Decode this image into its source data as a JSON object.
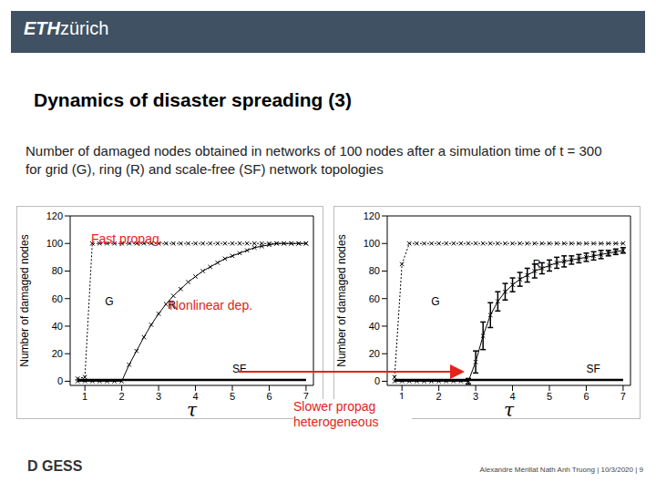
{
  "logo": [
    "ETH",
    "zürich"
  ],
  "title": "Dynamics of disaster spreading (3)",
  "caption": "Number of damaged nodes obtained in networks of 100 nodes after a simulation time of  t = 300 for grid (G), ring (R) and scale-free (SF) network topologies",
  "annotations": [
    "Fast propag.",
    "Nonlinear dep.",
    "Slower propag heterogeneous"
  ],
  "footer_logo": "D GESS",
  "footer": "Alexandre Mérillat Nath Anh Truong  |  10/3/2020  |  9",
  "chart_data": [
    {
      "type": "line",
      "x_label": "τ",
      "y_label": "Number of damaged nodes",
      "xlim": [
        0.6,
        7.2
      ],
      "xticks": [
        1,
        2,
        3,
        4,
        5,
        6,
        7
      ],
      "ylim": [
        -3,
        120
      ],
      "yticks": [
        0,
        20,
        40,
        60,
        80,
        100,
        120
      ],
      "x": [
        0.8,
        1.0,
        1.2,
        1.4,
        1.6,
        1.8,
        2.0,
        2.2,
        2.4,
        2.6,
        2.8,
        3.0,
        3.2,
        3.4,
        3.6,
        3.8,
        4.0,
        4.2,
        4.4,
        4.6,
        4.8,
        5.0,
        5.2,
        5.4,
        5.6,
        5.8,
        6.0,
        6.2,
        6.4,
        6.6,
        6.8,
        7.0
      ],
      "series": [
        {
          "name": "G",
          "color": "#000000",
          "line_style": "dotted",
          "marker": "x",
          "values": [
            2,
            3,
            100,
            100,
            100,
            100,
            100,
            100,
            100,
            100,
            100,
            100,
            100,
            100,
            100,
            100,
            100,
            100,
            100,
            100,
            100,
            100,
            100,
            100,
            100,
            100,
            100,
            100,
            100,
            100,
            100,
            100
          ]
        },
        {
          "name": "R",
          "color": "#000000",
          "line_style": "solid",
          "marker": "x",
          "values": [
            0,
            0,
            0,
            0,
            0,
            0,
            0,
            12,
            22,
            32,
            41,
            49,
            56,
            62,
            67,
            72,
            76,
            80,
            83,
            86,
            89,
            91,
            93,
            95,
            97,
            98,
            99,
            100,
            100,
            100,
            100,
            100
          ]
        },
        {
          "name": "SF",
          "color": "#000000",
          "line_style": "solid",
          "marker": "none",
          "values": [
            1,
            1,
            1,
            1,
            1,
            1,
            1,
            1,
            1,
            1,
            1,
            1,
            1,
            1,
            1,
            1,
            1,
            1,
            1,
            1,
            1,
            1,
            1,
            1,
            1,
            1,
            1,
            1,
            1,
            1,
            1,
            1
          ]
        }
      ]
    },
    {
      "type": "line",
      "x_label": "τ",
      "y_label": "Number of damaged nodes",
      "xlim": [
        0.6,
        7.2
      ],
      "xticks": [
        1,
        2,
        3,
        4,
        5,
        6,
        7
      ],
      "ylim": [
        -3,
        120
      ],
      "yticks": [
        0,
        20,
        40,
        60,
        80,
        100,
        120
      ],
      "x": [
        0.8,
        1.0,
        1.2,
        1.4,
        1.6,
        1.8,
        2.0,
        2.2,
        2.4,
        2.6,
        2.8,
        3.0,
        3.2,
        3.4,
        3.6,
        3.8,
        4.0,
        4.2,
        4.4,
        4.6,
        4.8,
        5.0,
        5.2,
        5.4,
        5.6,
        5.8,
        6.0,
        6.2,
        6.4,
        6.6,
        6.8,
        7.0
      ],
      "series": [
        {
          "name": "G",
          "color": "#000000",
          "line_style": "dotted",
          "marker": "x",
          "values": [
            3,
            85,
            100,
            100,
            100,
            100,
            100,
            100,
            100,
            100,
            100,
            100,
            100,
            100,
            100,
            100,
            100,
            100,
            100,
            100,
            100,
            100,
            100,
            100,
            100,
            100,
            100,
            100,
            100,
            100,
            100,
            100
          ]
        },
        {
          "name": "R",
          "color": "#000000",
          "line_style": "solid",
          "marker": "x",
          "values": [
            0,
            0,
            0,
            0,
            0,
            0,
            0,
            0,
            0,
            0,
            0,
            14,
            33,
            48,
            58,
            65,
            70,
            74,
            77,
            80,
            82,
            84,
            86,
            87,
            88,
            89,
            90,
            91,
            92,
            93,
            94,
            95
          ],
          "errors": [
            null,
            null,
            null,
            null,
            null,
            null,
            null,
            null,
            null,
            null,
            2,
            8,
            10,
            9,
            7,
            6,
            5,
            5,
            5,
            5,
            4,
            4,
            4,
            4,
            3,
            3,
            3,
            3,
            3,
            2,
            2,
            2
          ]
        },
        {
          "name": "SF",
          "color": "#000000",
          "line_style": "solid",
          "marker": "none",
          "values": [
            1,
            1,
            1,
            1,
            1,
            1,
            1,
            1,
            1,
            1,
            1,
            1,
            1,
            1,
            1,
            1,
            1,
            1,
            1,
            1,
            1,
            1,
            1,
            1,
            1,
            1,
            1,
            1,
            1,
            1,
            1,
            1
          ]
        }
      ]
    }
  ]
}
